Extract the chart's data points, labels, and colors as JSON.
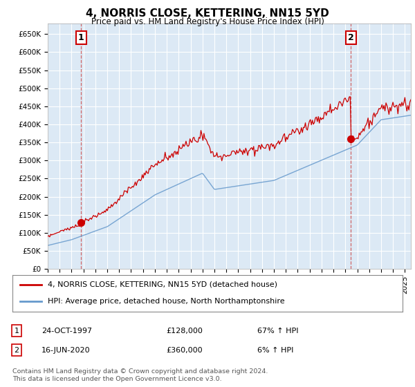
{
  "title": "4, NORRIS CLOSE, KETTERING, NN15 5YD",
  "subtitle": "Price paid vs. HM Land Registry's House Price Index (HPI)",
  "ylim": [
    0,
    680000
  ],
  "xlim_start": 1995.0,
  "xlim_end": 2025.5,
  "sale1_x": 1997.81,
  "sale1_y": 128000,
  "sale1_label": "1",
  "sale2_x": 2020.46,
  "sale2_y": 360000,
  "sale2_label": "2",
  "legend_line1": "4, NORRIS CLOSE, KETTERING, NN15 5YD (detached house)",
  "legend_line2": "HPI: Average price, detached house, North Northamptonshire",
  "footer": "Contains HM Land Registry data © Crown copyright and database right 2024.\nThis data is licensed under the Open Government Licence v3.0.",
  "line_color_red": "#cc0000",
  "line_color_blue": "#6699cc",
  "chart_bg": "#dce9f5",
  "background_color": "#ffffff",
  "grid_color": "#ffffff"
}
